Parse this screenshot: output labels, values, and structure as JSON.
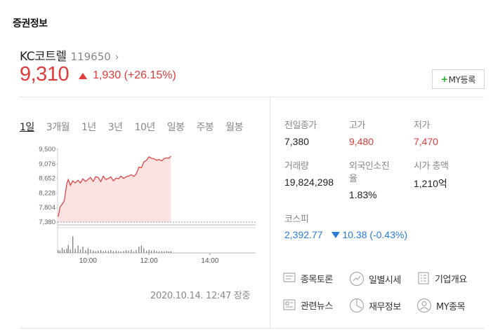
{
  "section": {
    "title": "증권정보"
  },
  "stock": {
    "name": "KC코트렐",
    "code": "119650",
    "chevron": "›",
    "price": "9,310",
    "change": "1,930 (+26.15%)",
    "my_button_label": "MY등록",
    "my_button_plus": "+"
  },
  "tabs": [
    "1일",
    "3개월",
    "1년",
    "3년",
    "10년",
    "일봉",
    "주봉",
    "월봉"
  ],
  "chart_data": {
    "type": "area",
    "title": "",
    "y_ticks": [
      "9,500",
      "9,076",
      "8,652",
      "8,228",
      "7,804",
      "7,380"
    ],
    "x_ticks": [
      "10:00",
      "12:00",
      "14:00"
    ],
    "baseline": 7380,
    "ylim": [
      7380,
      9500
    ],
    "xlim": [
      9.0,
      15.5
    ],
    "price_series": [
      [
        9.02,
        7540
      ],
      [
        9.08,
        7820
      ],
      [
        9.15,
        7900
      ],
      [
        9.22,
        8000
      ],
      [
        9.3,
        8480
      ],
      [
        9.35,
        8620
      ],
      [
        9.42,
        8450
      ],
      [
        9.5,
        8580
      ],
      [
        9.58,
        8520
      ],
      [
        9.67,
        8600
      ],
      [
        9.75,
        8520
      ],
      [
        9.83,
        8640
      ],
      [
        9.92,
        8560
      ],
      [
        10.0,
        8620
      ],
      [
        10.08,
        8680
      ],
      [
        10.17,
        8560
      ],
      [
        10.25,
        8700
      ],
      [
        10.33,
        8680
      ],
      [
        10.42,
        8560
      ],
      [
        10.5,
        8720
      ],
      [
        10.58,
        8620
      ],
      [
        10.67,
        8650
      ],
      [
        10.75,
        8700
      ],
      [
        10.83,
        8580
      ],
      [
        10.92,
        8660
      ],
      [
        11.0,
        8640
      ],
      [
        11.08,
        8720
      ],
      [
        11.17,
        8650
      ],
      [
        11.25,
        8700
      ],
      [
        11.33,
        8720
      ],
      [
        11.42,
        8760
      ],
      [
        11.5,
        8710
      ],
      [
        11.58,
        8780
      ],
      [
        11.67,
        8980
      ],
      [
        11.75,
        8960
      ],
      [
        11.83,
        9130
      ],
      [
        11.92,
        9180
      ],
      [
        12.0,
        9280
      ],
      [
        12.08,
        9240
      ],
      [
        12.17,
        9220
      ],
      [
        12.25,
        9180
      ],
      [
        12.33,
        9200
      ],
      [
        12.42,
        9160
      ],
      [
        12.5,
        9230
      ],
      [
        12.58,
        9250
      ],
      [
        12.65,
        9240
      ],
      [
        12.72,
        9300
      ]
    ],
    "volume_series": [
      [
        9.02,
        0.12
      ],
      [
        9.08,
        0.1
      ],
      [
        9.15,
        0.22
      ],
      [
        9.22,
        0.15
      ],
      [
        9.3,
        0.18
      ],
      [
        9.35,
        0.35
      ],
      [
        9.42,
        0.15
      ],
      [
        9.5,
        0.72
      ],
      [
        9.58,
        0.18
      ],
      [
        9.67,
        0.32
      ],
      [
        9.75,
        0.15
      ],
      [
        9.83,
        0.28
      ],
      [
        9.92,
        0.12
      ],
      [
        10.0,
        0.2
      ],
      [
        10.08,
        0.15
      ],
      [
        10.17,
        0.1
      ],
      [
        10.25,
        0.08
      ],
      [
        10.33,
        0.1
      ],
      [
        10.42,
        0.12
      ],
      [
        10.5,
        0.08
      ],
      [
        10.58,
        0.1
      ],
      [
        10.67,
        0.08
      ],
      [
        10.75,
        0.12
      ],
      [
        10.83,
        0.08
      ],
      [
        10.92,
        0.1
      ],
      [
        11.0,
        0.08
      ],
      [
        11.08,
        0.06
      ],
      [
        11.17,
        0.08
      ],
      [
        11.25,
        0.12
      ],
      [
        11.33,
        0.1
      ],
      [
        11.42,
        0.14
      ],
      [
        11.5,
        0.06
      ],
      [
        11.58,
        0.12
      ],
      [
        11.67,
        0.28
      ],
      [
        11.75,
        0.32
      ],
      [
        11.83,
        0.2
      ],
      [
        11.92,
        0.1
      ],
      [
        12.0,
        0.14
      ],
      [
        12.08,
        0.1
      ],
      [
        12.17,
        0.12
      ],
      [
        12.25,
        0.08
      ],
      [
        12.33,
        0.06
      ],
      [
        12.42,
        0.08
      ],
      [
        12.5,
        0.06
      ],
      [
        12.58,
        0.08
      ],
      [
        12.65,
        0.06
      ],
      [
        12.72,
        0.08
      ]
    ]
  },
  "timestamp": "2020.10.14. 12:47 장중",
  "info": {
    "prev_close": {
      "label": "전일종가",
      "value": "7,380"
    },
    "high": {
      "label": "고가",
      "value": "9,480"
    },
    "low": {
      "label": "저가",
      "value": "7,470"
    },
    "volume": {
      "label": "거래량",
      "value": "19,824,298"
    },
    "foreign": {
      "label1": "외국인소진",
      "label2": "율",
      "value": "1.83%"
    },
    "market_cap": {
      "label": "시가 총액",
      "value": "1,210억"
    }
  },
  "kospi": {
    "label": "코스피",
    "value": "2,392.77",
    "change": "10.38 (-0.43%)"
  },
  "links": {
    "discussion": "종목토론",
    "daily": "일별시세",
    "overview": "기업개요",
    "news": "관련뉴스",
    "finance": "재무정보",
    "my_stocks": "MY종목"
  },
  "colors": {
    "up": "#e23a3a",
    "down": "#2b7bd7",
    "plus": "#19a51b"
  },
  "icons": [
    "chevron-right-icon",
    "up-triangle-icon",
    "down-triangle-icon",
    "discussion-icon",
    "daily-trend-icon",
    "company-overview-icon",
    "news-icon",
    "finance-pie-icon",
    "my-person-icon"
  ]
}
